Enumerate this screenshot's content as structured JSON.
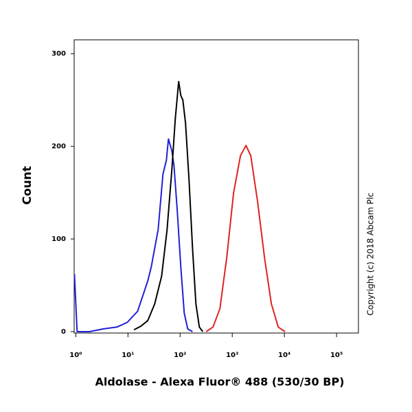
{
  "chart_data": {
    "type": "line",
    "xscale": "log",
    "xlabel": "Aldolase - Alexa Fluor® 488 (530/30 BP)",
    "ylabel": "Count",
    "annotation": "Copyright (c) 2018 Abcam Plc",
    "xlim": [
      0.93,
      263000
    ],
    "ylim": [
      0,
      315
    ],
    "xticks": [
      {
        "value": 1,
        "label": "10⁰"
      },
      {
        "value": 10,
        "label": "10¹"
      },
      {
        "value": 100,
        "label": "10²"
      },
      {
        "value": 1000,
        "label": "10³"
      },
      {
        "value": 10000,
        "label": "10⁴"
      },
      {
        "value": 100000,
        "label": "10⁵"
      }
    ],
    "yticks": [
      {
        "value": 0,
        "label": "0"
      },
      100,
      200,
      300
    ],
    "series": [
      {
        "color": "#1f1fd6",
        "x": [
          0.94,
          1.06,
          1.27,
          1.83,
          3.36,
          6.15,
          9.7,
          15.3,
          24.1,
          28.0,
          37.9,
          46.9,
          54.6,
          59.7,
          69.5,
          76.2,
          88.5,
          103,
          120,
          140,
          173
        ],
        "values": [
          62,
          0,
          0,
          0,
          3,
          5,
          10,
          22,
          55,
          70,
          110,
          170,
          185,
          208,
          195,
          180,
          130,
          70,
          20,
          3,
          0
        ]
      },
      {
        "color": "#000000",
        "x": [
          13.1,
          17.8,
          24.1,
          32.6,
          44.2,
          56.2,
          69.5,
          81,
          94,
          103,
          113,
          127,
          148,
          173,
          201,
          234,
          272
        ],
        "values": [
          2,
          6,
          12,
          30,
          60,
          110,
          175,
          230,
          270,
          255,
          250,
          225,
          165,
          90,
          30,
          5,
          0
        ]
      },
      {
        "color": "#e02020",
        "x": [
          316,
          428,
          580,
          785,
          1062,
          1438,
          1834,
          2265,
          3070,
          4150,
          5620,
          7620,
          10300
        ],
        "values": [
          0,
          5,
          25,
          80,
          150,
          190,
          201,
          190,
          140,
          80,
          30,
          5,
          0
        ]
      }
    ]
  }
}
